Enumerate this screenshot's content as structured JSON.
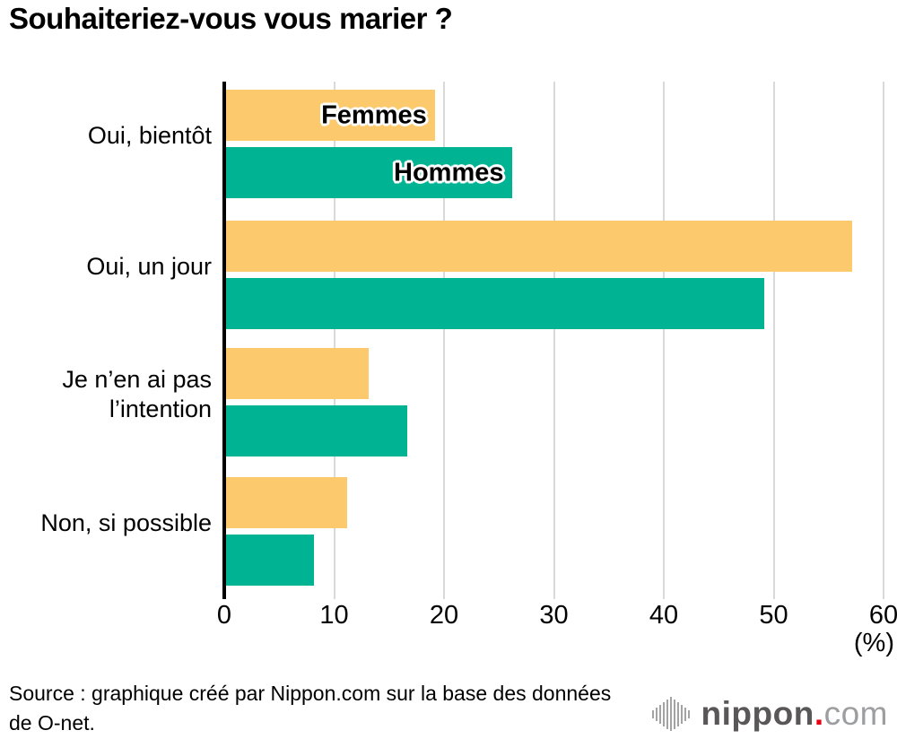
{
  "chart_data": {
    "type": "bar",
    "orientation": "horizontal",
    "title": "Souhaiteriez-vous vous marier ?",
    "categories": [
      "Oui, bientôt",
      "Oui, un jour",
      "Je n’en ai pas l’intention",
      "Non, si possible"
    ],
    "series": [
      {
        "name": "Femmes",
        "color": "#fcc96d",
        "values": [
          19,
          57,
          13,
          11
        ]
      },
      {
        "name": "Hommes",
        "color": "#00b493",
        "values": [
          26,
          49,
          16.5,
          8
        ]
      }
    ],
    "x_axis": {
      "ticks": [
        "0",
        "10",
        "20",
        "30",
        "40",
        "50",
        "60"
      ],
      "tick_values": [
        0,
        10,
        20,
        30,
        40,
        50,
        60
      ],
      "max": 60,
      "unit_label": "(%)"
    },
    "grid": true,
    "legend_position": "labels-inside-first-bars",
    "colors": {
      "gridline": "#d9d9d9",
      "axis": "#000000",
      "background": "#ffffff"
    }
  },
  "source": {
    "line1": "Source : graphique créé par Nippon.com sur la base des données",
    "line2": "de O-net."
  },
  "logo": {
    "icon": "soundwave-icon",
    "text_main": "nippon",
    "text_dot": ".",
    "text_tld": "com",
    "color_main": "#595757",
    "color_dot": "#e60012",
    "color_tld": "#9d9ea0"
  }
}
